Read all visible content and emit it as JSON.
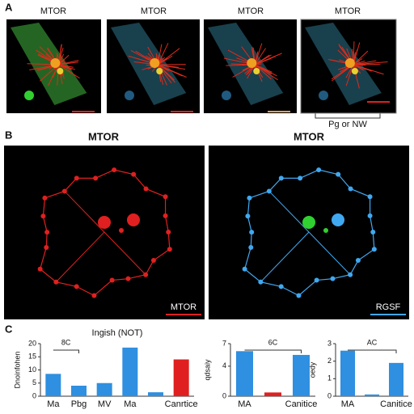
{
  "panels": {
    "A": {
      "letter": "A",
      "titles": [
        "MTOR",
        "MTOR",
        "MTOR",
        "MTOR"
      ],
      "bracket_label": "Pg or NW"
    },
    "B": {
      "letter": "B",
      "titles": [
        "MTOR",
        "MTOR"
      ],
      "scale_labels": [
        "MTOR",
        "RGSF"
      ]
    },
    "C": {
      "letter": "C"
    }
  },
  "chart_data": [
    {
      "type": "bar",
      "title": "Ingish (NOT)",
      "ylabel": "Dnoinfohen",
      "annotation": "8C",
      "categories": [
        "Ma",
        "Pbg",
        "MV",
        "Ma",
        null,
        "Canrtice"
      ],
      "values": [
        8.5,
        4,
        5,
        18.5,
        1.5,
        14
      ],
      "colors": [
        "#2f8fe0",
        "#2f8fe0",
        "#2f8fe0",
        "#2f8fe0",
        "#2f8fe0",
        "#e02020"
      ],
      "ylim": [
        0,
        20
      ],
      "yticks": [
        0,
        5,
        10,
        15,
        20
      ]
    },
    {
      "type": "bar",
      "ylabel": "qdsaiy",
      "annotation": "6C",
      "categories": [
        "MA",
        null,
        "Canitice"
      ],
      "values": [
        6,
        0.5,
        5.5
      ],
      "colors": [
        "#2f8fe0",
        "#e02020",
        "#2f8fe0"
      ],
      "ylim": [
        0,
        7
      ],
      "yticks": [
        0,
        4,
        7
      ]
    },
    {
      "type": "bar",
      "ylabel": "oedy",
      "annotation": "AC",
      "categories": [
        "MA",
        null,
        "Canitice"
      ],
      "values": [
        2.6,
        0.1,
        1.9
      ],
      "colors": [
        "#2f8fe0",
        "#2f8fe0",
        "#2f8fe0"
      ],
      "ylim": [
        0,
        3
      ],
      "yticks": [
        0,
        1,
        2,
        3
      ]
    }
  ]
}
